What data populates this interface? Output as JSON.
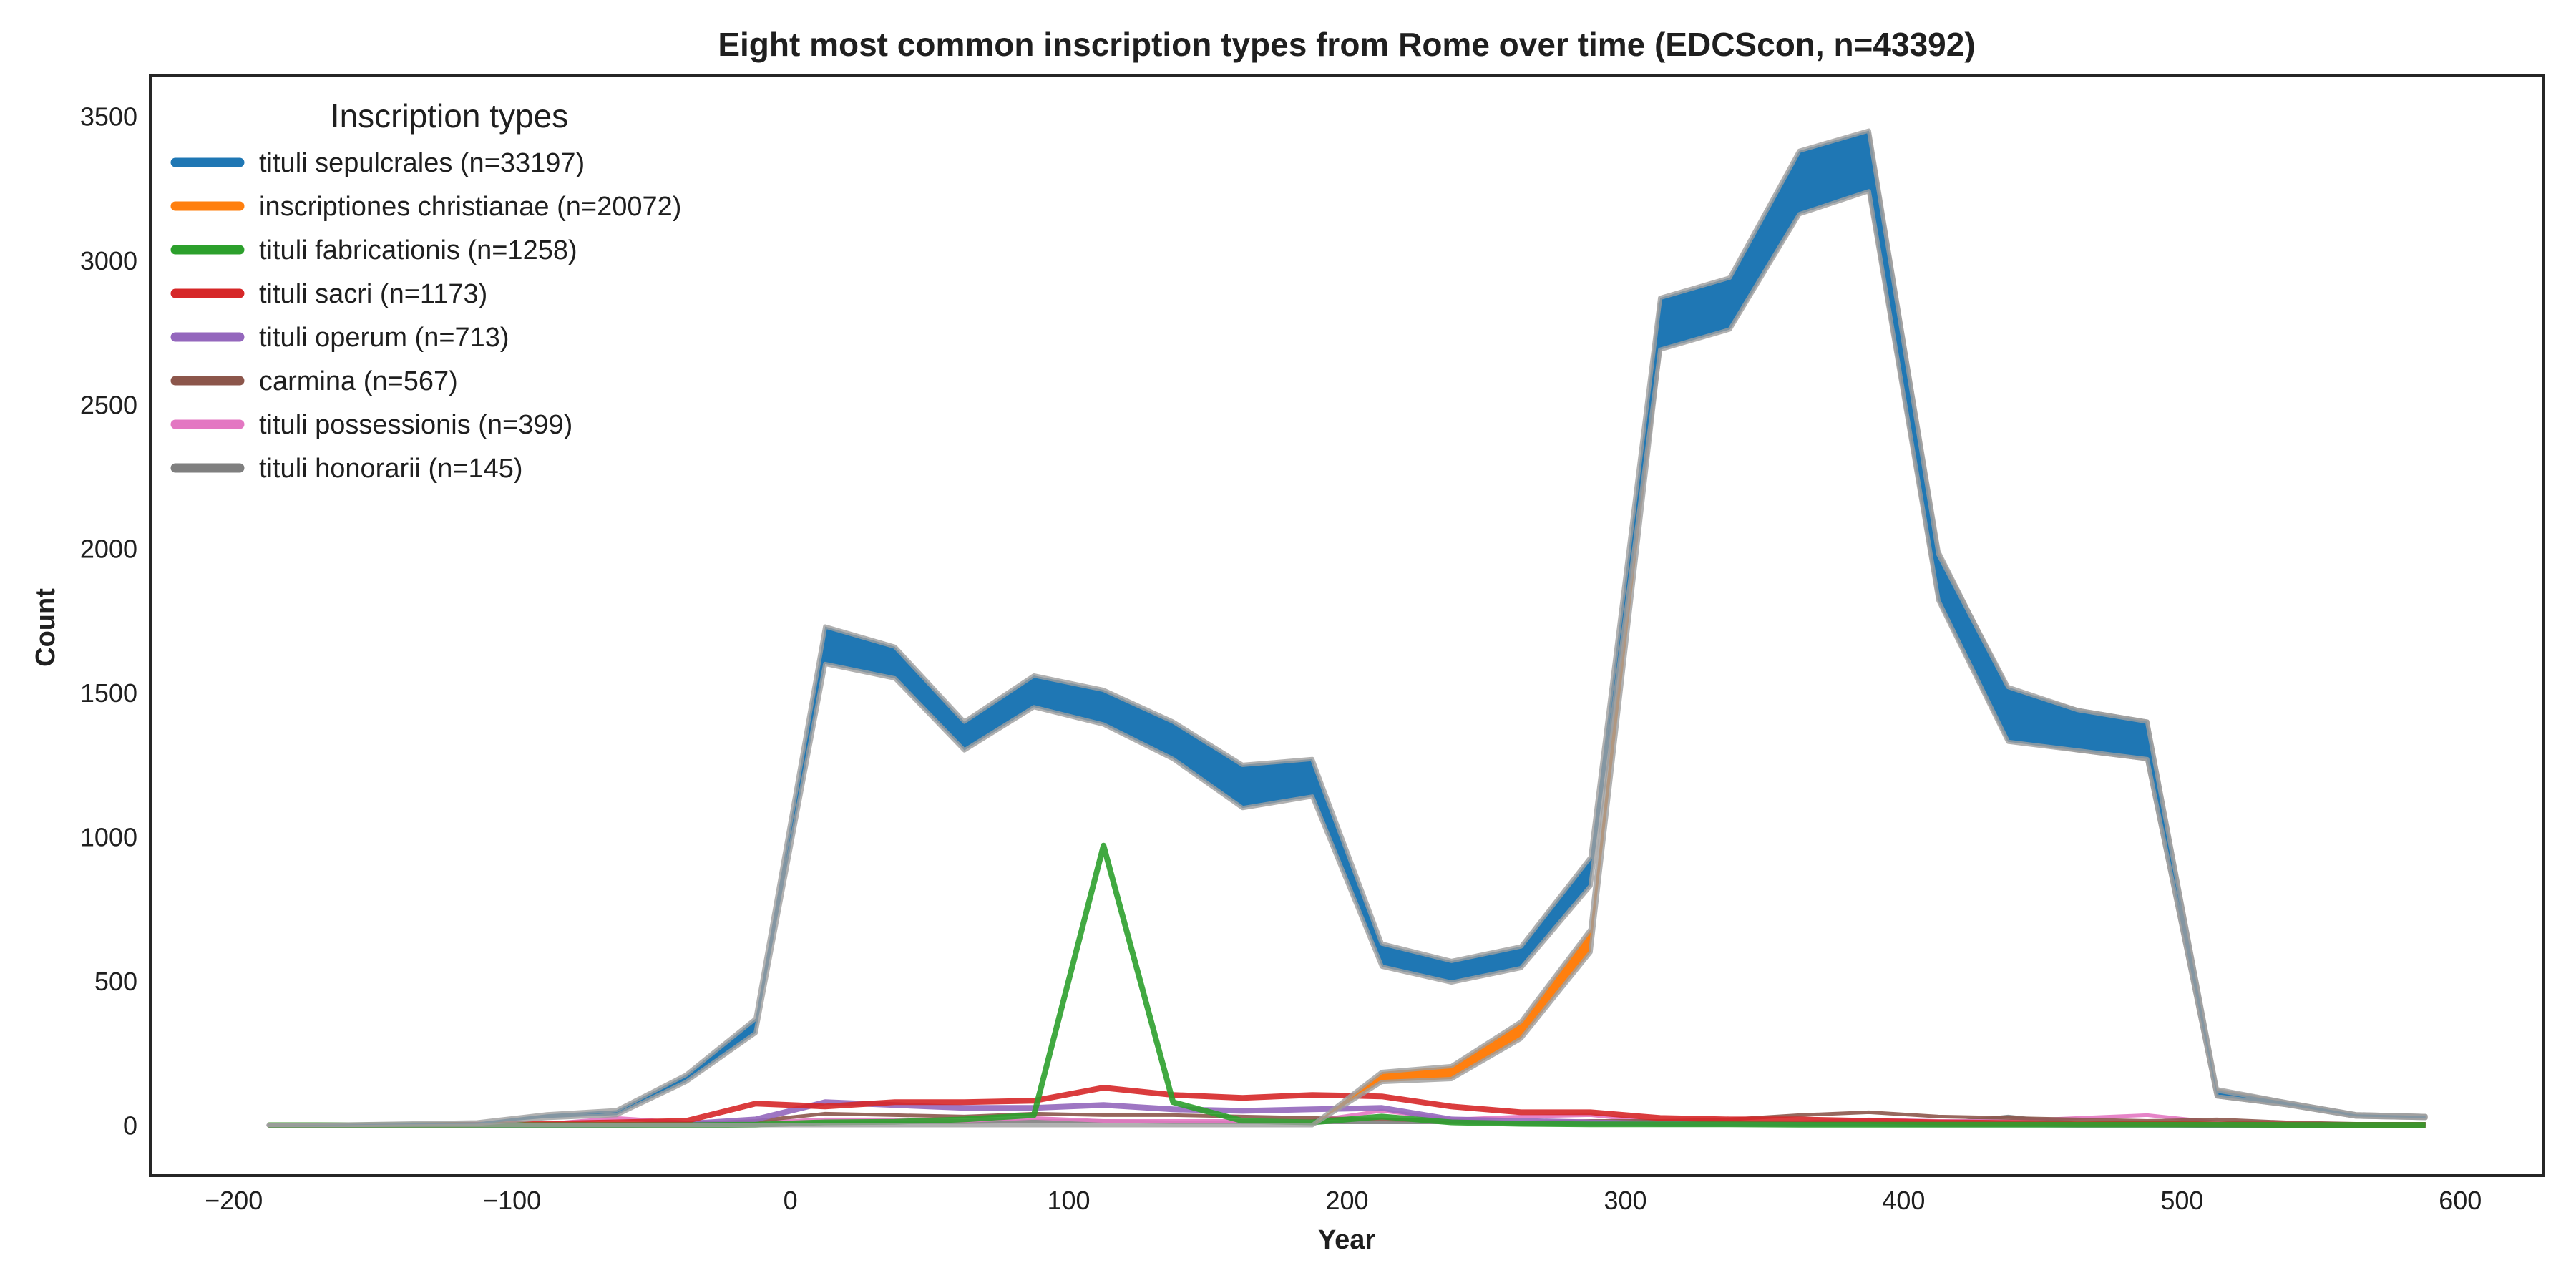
{
  "chart_data": {
    "type": "line",
    "title": "Eight most common inscription types from Rome over time (EDCScon, n=43392)",
    "xlabel": "Year",
    "ylabel": "Count",
    "xlim": [
      -230,
      630
    ],
    "ylim": [
      -175,
      3640
    ],
    "xticks": [
      -200,
      -100,
      0,
      100,
      200,
      300,
      400,
      500,
      600
    ],
    "xtick_labels": [
      "−200",
      "−100",
      "0",
      "100",
      "200",
      "300",
      "400",
      "500",
      "600"
    ],
    "yticks": [
      0,
      500,
      1000,
      1500,
      2000,
      2500,
      3000,
      3500
    ],
    "ytick_labels": [
      "0",
      "500",
      "1000",
      "1500",
      "2000",
      "2500",
      "3000",
      "3500"
    ],
    "grid": false,
    "legend": {
      "title": "Inscription types",
      "placement": "top-left"
    },
    "x": [
      -187.5,
      -162.5,
      -137.5,
      -112.5,
      -87.5,
      -62.5,
      -37.5,
      -12.5,
      12.5,
      37.5,
      62.5,
      87.5,
      112.5,
      137.5,
      162.5,
      187.5,
      212.5,
      237.5,
      262.5,
      287.5,
      312.5,
      337.5,
      362.5,
      387.5,
      412.5,
      437.5,
      462.5,
      487.5,
      512.5,
      537.5,
      562.5,
      587.5
    ],
    "series": [
      {
        "name": "tituli sepulcrales (n=33197)",
        "color": "#1f77b4",
        "lower": [
          0,
          0,
          3,
          5,
          25,
          35,
          150,
          320,
          1600,
          1550,
          1300,
          1450,
          1390,
          1270,
          1100,
          1140,
          550,
          495,
          545,
          830,
          2690,
          2760,
          3160,
          3240,
          1820,
          1330,
          1300,
          1270,
          100,
          70,
          30,
          25
        ],
        "upper": [
          0,
          2,
          6,
          10,
          38,
          52,
          175,
          370,
          1730,
          1660,
          1400,
          1560,
          1510,
          1400,
          1250,
          1270,
          630,
          570,
          620,
          930,
          2870,
          2940,
          3380,
          3450,
          1980,
          1520,
          1440,
          1400,
          120,
          80,
          38,
          32
        ]
      },
      {
        "name": "inscriptiones christianae (n=20072)",
        "color": "#ff7f0e",
        "lower": [
          0,
          0,
          0,
          0,
          0,
          0,
          0,
          0,
          0,
          0,
          0,
          0,
          0,
          0,
          0,
          0,
          150,
          160,
          300,
          600,
          2700,
          2770,
          3170,
          3250,
          1830,
          1340,
          1300,
          1270,
          100,
          70,
          30,
          25
        ],
        "upper": [
          0,
          0,
          0,
          0,
          0,
          0,
          0,
          0,
          0,
          0,
          0,
          0,
          0,
          0,
          0,
          0,
          185,
          205,
          360,
          680,
          2850,
          2920,
          3360,
          3440,
          1990,
          1510,
          1440,
          1400,
          125,
          80,
          38,
          32
        ]
      },
      {
        "name": "tituli fabricationis (n=1258)",
        "color": "#2ca02c",
        "values": [
          0,
          0,
          0,
          0,
          0,
          0,
          0,
          2,
          10,
          12,
          20,
          35,
          970,
          80,
          15,
          10,
          30,
          10,
          5,
          3,
          3,
          3,
          2,
          2,
          2,
          2,
          2,
          2,
          2,
          1,
          1,
          1
        ]
      },
      {
        "name": "tituli sacri (n=1173)",
        "color": "#d62728",
        "values": [
          0,
          0,
          0,
          2,
          5,
          10,
          15,
          75,
          65,
          80,
          80,
          85,
          130,
          105,
          95,
          105,
          100,
          65,
          45,
          45,
          25,
          20,
          20,
          15,
          10,
          8,
          5,
          5,
          3,
          2,
          1,
          1
        ]
      },
      {
        "name": "tituli operum (n=713)",
        "color": "#9467bd",
        "values": [
          0,
          0,
          0,
          0,
          0,
          0,
          5,
          20,
          80,
          70,
          60,
          60,
          70,
          55,
          50,
          55,
          60,
          20,
          15,
          10,
          5,
          5,
          5,
          5,
          3,
          3,
          2,
          2,
          1,
          1,
          0,
          0
        ]
      },
      {
        "name": "carmina (n=567)",
        "color": "#8c564b",
        "values": [
          0,
          0,
          0,
          0,
          2,
          5,
          5,
          15,
          40,
          35,
          30,
          40,
          35,
          35,
          30,
          25,
          20,
          15,
          10,
          15,
          15,
          20,
          35,
          45,
          30,
          25,
          20,
          15,
          20,
          10,
          5,
          5
        ]
      },
      {
        "name": "tituli possessionis (n=399)",
        "color": "#e377c2",
        "values": [
          0,
          0,
          0,
          0,
          5,
          25,
          10,
          10,
          20,
          20,
          15,
          25,
          15,
          15,
          15,
          15,
          50,
          20,
          30,
          35,
          10,
          10,
          10,
          20,
          15,
          15,
          25,
          35,
          10,
          5,
          5,
          5
        ]
      },
      {
        "name": "tituli honorarii (n=145)",
        "color": "#7f7f7f",
        "values": [
          0,
          0,
          0,
          0,
          0,
          0,
          0,
          5,
          10,
          10,
          10,
          15,
          15,
          10,
          10,
          10,
          10,
          10,
          5,
          5,
          5,
          5,
          5,
          5,
          5,
          30,
          5,
          5,
          2,
          1,
          0,
          0
        ]
      }
    ]
  }
}
